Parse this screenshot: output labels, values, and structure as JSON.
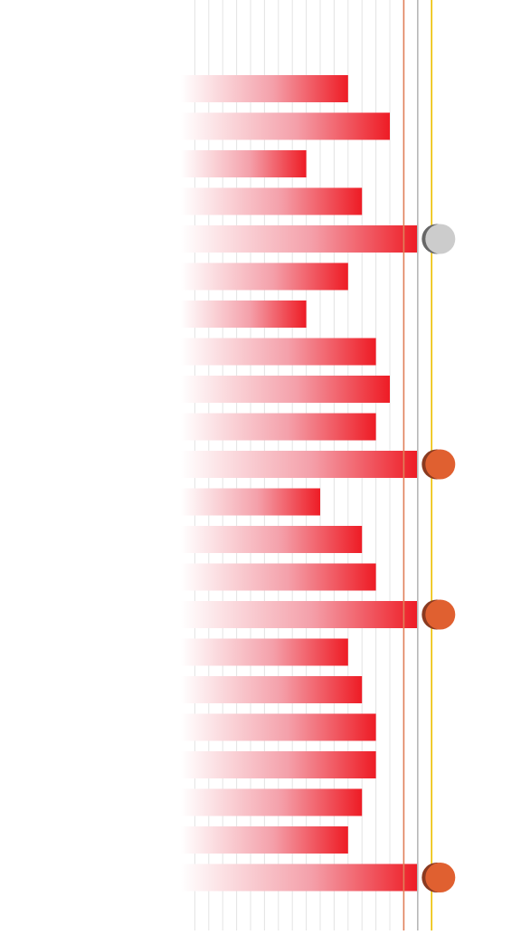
{
  "chart_data": {
    "type": "bar",
    "orientation": "horizontal",
    "title": "",
    "xlabel": "",
    "ylabel": "",
    "grid": true,
    "xlim": [
      0,
      18
    ],
    "values": [
      12,
      15,
      9,
      13,
      17,
      12,
      9,
      14,
      15,
      14,
      17,
      10,
      13,
      14,
      17,
      12,
      13,
      14,
      14,
      13,
      12,
      17
    ],
    "markers": [
      {
        "bar_index": 4,
        "color": "#cccccc",
        "shadow": "#666666"
      },
      {
        "bar_index": 10,
        "color": "#e06030",
        "shadow": "#8a3a20"
      },
      {
        "bar_index": 14,
        "color": "#e06030",
        "shadow": "#8a3a20"
      },
      {
        "bar_index": 21,
        "color": "#e06030",
        "shadow": "#8a3a20"
      }
    ],
    "reference_lines": [
      {
        "value": 16,
        "color": "#e0805a"
      },
      {
        "value": 17,
        "color": "#b8b8b8"
      },
      {
        "value": 18,
        "color": "#ecc000"
      }
    ],
    "colors": {
      "bar_start": "#ffffff",
      "bar_end": "#ee1c25",
      "gridline": "#e4e4e4",
      "background": "#ffffff"
    }
  }
}
